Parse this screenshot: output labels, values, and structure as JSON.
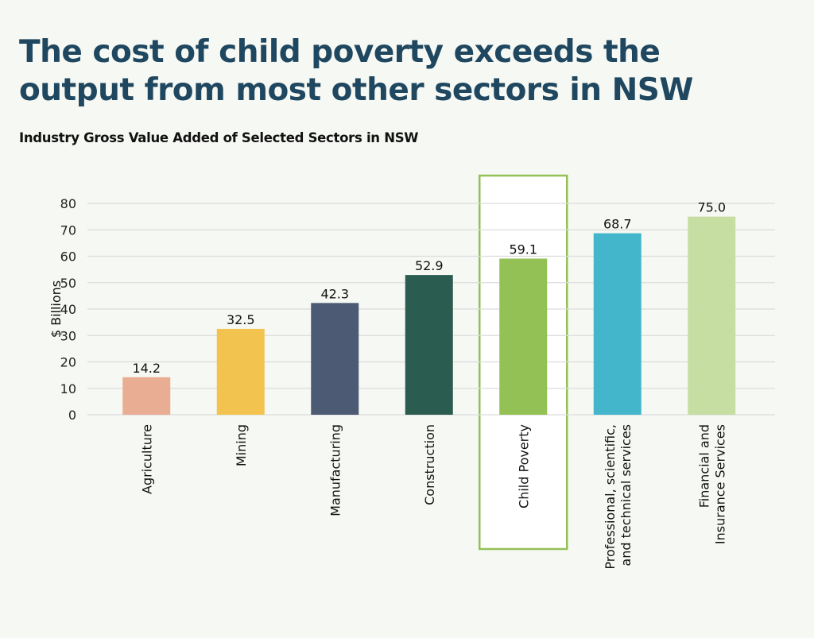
{
  "header": {
    "title": "The cost of child poverty exceeds the output from most other sectors in NSW",
    "subtitle": "Industry Gross Value Added of Selected Sectors in NSW"
  },
  "colors": {
    "background": "#f6f8f3",
    "title": "#1f4760",
    "gridline": "#dcdcdc",
    "highlight_border": "#93c156",
    "highlight_fill": "#ffffff"
  },
  "chart_data": {
    "type": "bar",
    "title": "Industry Gross Value Added of Selected Sectors in NSW",
    "xlabel": "",
    "ylabel": "$ Billions",
    "ylim": [
      0,
      80
    ],
    "yticks": [
      0,
      10,
      20,
      30,
      40,
      50,
      60,
      70,
      80
    ],
    "grid": true,
    "legend": "none",
    "highlight_category": "Child Poverty",
    "categories": [
      [
        "Agriculture"
      ],
      [
        "Mining"
      ],
      [
        "Manufacturing"
      ],
      [
        "Construction"
      ],
      [
        "Child Poverty"
      ],
      [
        "Professional, scientific,",
        "and technical services"
      ],
      [
        "Financial and",
        "Insurance Services"
      ]
    ],
    "values": [
      14.2,
      32.5,
      42.3,
      52.9,
      59.1,
      68.7,
      75.0
    ],
    "data_labels": [
      "14.2",
      "32.5",
      "42.3",
      "52.9",
      "59.1",
      "68.7",
      "75.0"
    ],
    "bar_colors": [
      "#e9ad94",
      "#f3c34f",
      "#4c5a74",
      "#2a5c4f",
      "#93c156",
      "#43b6cb",
      "#c6dea2"
    ]
  }
}
